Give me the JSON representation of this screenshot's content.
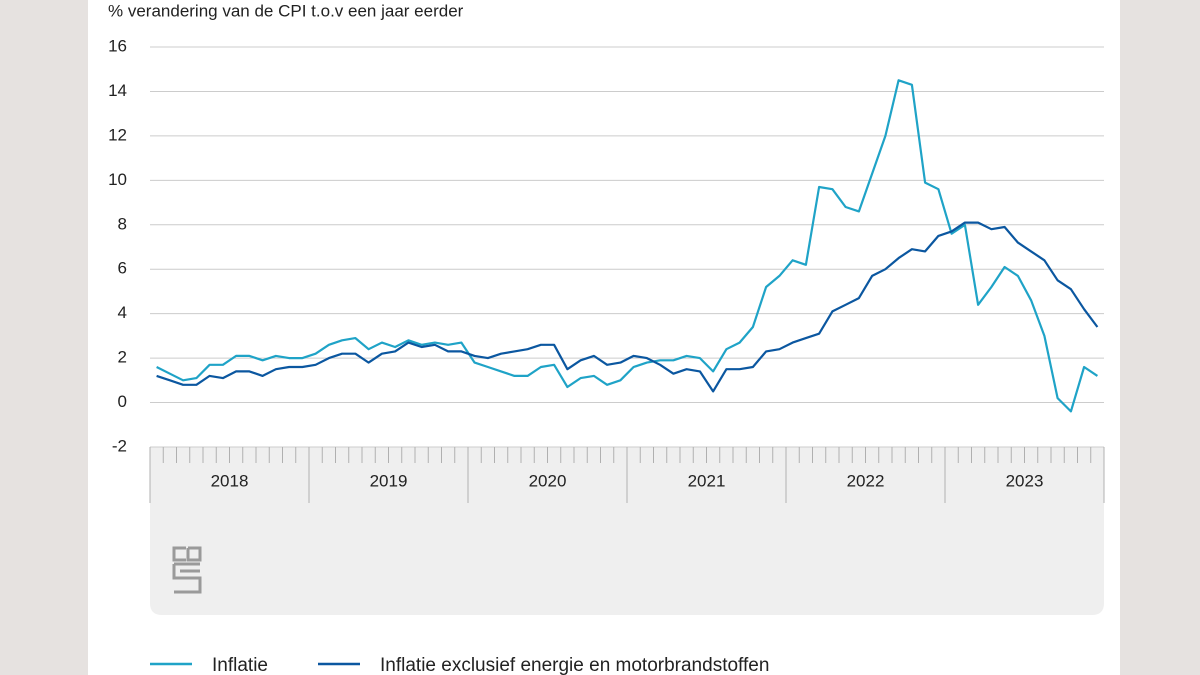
{
  "chart_data": {
    "type": "line",
    "y_axis_label": "% verandering van de CPI t.o.v een jaar eerder",
    "years": [
      "2018",
      "2019",
      "2020",
      "2021",
      "2022",
      "2023"
    ],
    "ylim": [
      -2,
      16
    ],
    "yticks": [
      -2,
      0,
      2,
      4,
      6,
      8,
      10,
      12,
      14,
      16
    ],
    "grid": true,
    "series": [
      {
        "name": "Inflatie",
        "color": "#1fa3c7",
        "values": [
          1.6,
          1.3,
          1.0,
          1.1,
          1.7,
          1.7,
          2.1,
          2.1,
          1.9,
          2.1,
          2.0,
          2.0,
          2.2,
          2.6,
          2.8,
          2.9,
          2.4,
          2.7,
          2.5,
          2.8,
          2.6,
          2.7,
          2.6,
          2.7,
          1.8,
          1.6,
          1.4,
          1.2,
          1.2,
          1.6,
          1.7,
          0.7,
          1.1,
          1.2,
          0.8,
          1.0,
          1.6,
          1.8,
          1.9,
          1.9,
          2.1,
          2.0,
          1.4,
          2.4,
          2.7,
          3.4,
          5.2,
          5.7,
          6.4,
          6.2,
          9.7,
          9.6,
          8.8,
          8.6,
          10.3,
          12.0,
          14.5,
          14.3,
          9.9,
          9.6,
          7.6,
          8.0,
          4.4,
          5.2,
          6.1,
          5.7,
          4.6,
          3.0,
          0.2,
          -0.4,
          1.6,
          1.2
        ]
      },
      {
        "name": "Inflatie exclusief energie en motorbrandstoffen",
        "color": "#0b57a0",
        "values": [
          1.2,
          1.0,
          0.8,
          0.8,
          1.2,
          1.1,
          1.4,
          1.4,
          1.2,
          1.5,
          1.6,
          1.6,
          1.7,
          2.0,
          2.2,
          2.2,
          1.8,
          2.2,
          2.3,
          2.7,
          2.5,
          2.6,
          2.3,
          2.3,
          2.1,
          2.0,
          2.2,
          2.3,
          2.4,
          2.6,
          2.6,
          1.5,
          1.9,
          2.1,
          1.7,
          1.8,
          2.1,
          2.0,
          1.7,
          1.3,
          1.5,
          1.4,
          0.5,
          1.5,
          1.5,
          1.6,
          2.3,
          2.4,
          2.7,
          2.9,
          3.1,
          4.1,
          4.4,
          4.7,
          5.7,
          6.0,
          6.5,
          6.9,
          6.8,
          7.5,
          7.7,
          8.1,
          8.1,
          7.8,
          7.9,
          7.2,
          6.8,
          6.4,
          5.5,
          5.1,
          4.2,
          3.4
        ]
      }
    ]
  }
}
